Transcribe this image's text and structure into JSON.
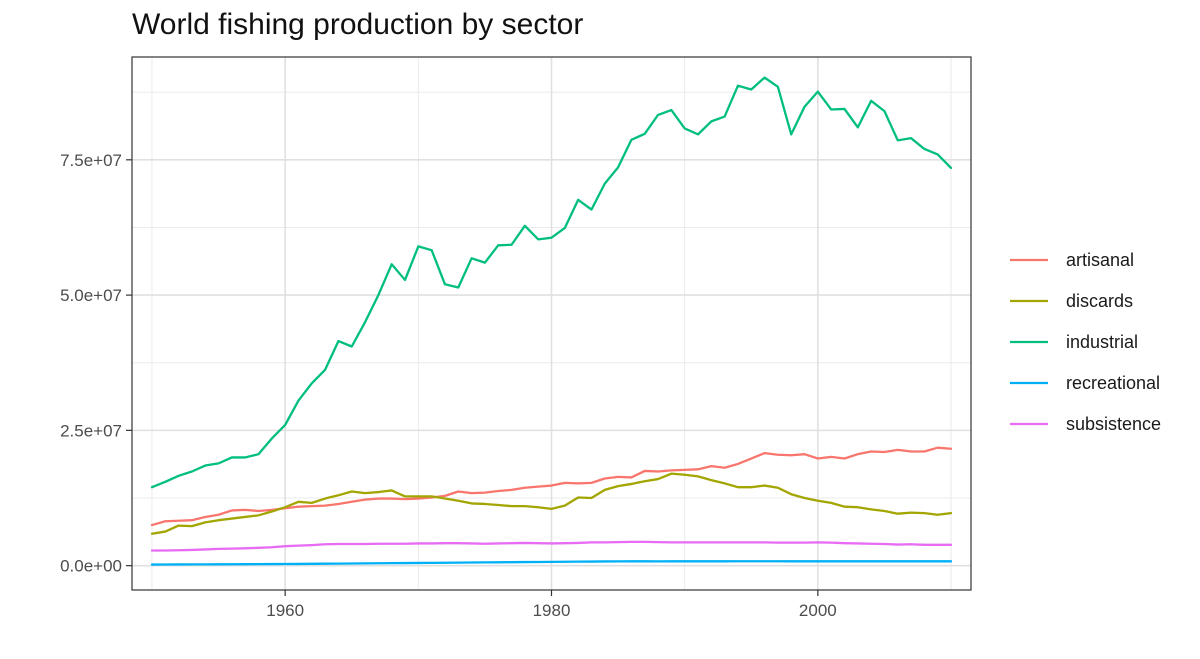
{
  "chart_data": {
    "type": "line",
    "title": "World fishing production by sector",
    "xlabel": "",
    "ylabel": "",
    "xlim": [
      1948.5,
      2011.5
    ],
    "ylim": [
      -4500000,
      94000000
    ],
    "x_ticks": [
      1960,
      1980,
      2000
    ],
    "y_ticks": [
      0,
      25000000,
      50000000,
      75000000
    ],
    "y_tick_labels": [
      "0.0e+00",
      "2.5e+07",
      "5.0e+07",
      "7.5e+07"
    ],
    "grid": true,
    "legend": "right",
    "x": [
      1950,
      1951,
      1952,
      1953,
      1954,
      1955,
      1956,
      1957,
      1958,
      1959,
      1960,
      1961,
      1962,
      1963,
      1964,
      1965,
      1966,
      1967,
      1968,
      1969,
      1970,
      1971,
      1972,
      1973,
      1974,
      1975,
      1976,
      1977,
      1978,
      1979,
      1980,
      1981,
      1982,
      1983,
      1984,
      1985,
      1986,
      1987,
      1988,
      1989,
      1990,
      1991,
      1992,
      1993,
      1994,
      1995,
      1996,
      1997,
      1998,
      1999,
      2000,
      2001,
      2002,
      2003,
      2004,
      2005,
      2006,
      2007,
      2008,
      2009,
      2010
    ],
    "series": [
      {
        "name": "artisanal",
        "color": "#F8766D",
        "values": [
          7500000,
          8200000,
          8300000,
          8400000,
          9000000,
          9400000,
          10200000,
          10300000,
          10100000,
          10300000,
          10600000,
          10900000,
          11000000,
          11100000,
          11400000,
          11800000,
          12200000,
          12400000,
          12400000,
          12300000,
          12400000,
          12600000,
          12900000,
          13700000,
          13400000,
          13500000,
          13800000,
          14000000,
          14400000,
          14600000,
          14800000,
          15300000,
          15200000,
          15300000,
          16100000,
          16400000,
          16300000,
          17500000,
          17400000,
          17600000,
          17700000,
          17800000,
          18400000,
          18100000,
          18800000,
          19800000,
          20800000,
          20500000,
          20400000,
          20600000,
          19800000,
          20100000,
          19800000,
          20600000,
          21100000,
          21000000,
          21400000,
          21100000,
          21100000,
          21800000,
          21600000
        ]
      },
      {
        "name": "discards",
        "color": "#A3A500",
        "values": [
          5900000,
          6300000,
          7400000,
          7300000,
          8000000,
          8400000,
          8700000,
          9000000,
          9300000,
          10000000,
          10800000,
          11800000,
          11600000,
          12400000,
          13000000,
          13700000,
          13400000,
          13600000,
          13900000,
          12800000,
          12800000,
          12800000,
          12400000,
          12000000,
          11500000,
          11400000,
          11200000,
          11000000,
          11000000,
          10800000,
          10500000,
          11100000,
          12600000,
          12500000,
          14000000,
          14700000,
          15100000,
          15600000,
          16000000,
          17000000,
          16800000,
          16500000,
          15800000,
          15200000,
          14500000,
          14500000,
          14800000,
          14400000,
          13200000,
          12500000,
          12000000,
          11600000,
          10900000,
          10800000,
          10400000,
          10100000,
          9600000,
          9800000,
          9700000,
          9400000,
          9700000
        ]
      },
      {
        "name": "industrial",
        "color": "#00BF7D",
        "values": [
          14500000,
          15500000,
          16600000,
          17400000,
          18500000,
          18900000,
          20000000,
          20000000,
          20600000,
          23500000,
          26000000,
          30500000,
          33700000,
          36200000,
          41500000,
          40500000,
          45000000,
          50000000,
          55700000,
          52800000,
          59000000,
          58300000,
          52000000,
          51400000,
          56800000,
          56000000,
          59200000,
          59300000,
          62800000,
          60300000,
          60600000,
          62400000,
          67600000,
          65800000,
          70600000,
          73600000,
          78700000,
          79800000,
          83300000,
          84200000,
          80800000,
          79700000,
          82100000,
          83000000,
          88700000,
          88000000,
          90200000,
          88500000,
          79700000,
          84800000,
          87600000,
          84300000,
          84400000,
          81000000,
          85900000,
          84000000,
          78600000,
          79000000,
          77000000,
          76000000,
          73500000
        ]
      },
      {
        "name": "recreational",
        "color": "#00B0F6",
        "values": [
          200000,
          210000,
          220000,
          230000,
          240000,
          250000,
          260000,
          270000,
          280000,
          290000,
          300000,
          320000,
          340000,
          360000,
          380000,
          400000,
          420000,
          440000,
          460000,
          480000,
          500000,
          520000,
          540000,
          560000,
          580000,
          600000,
          620000,
          640000,
          660000,
          680000,
          700000,
          720000,
          740000,
          760000,
          780000,
          790000,
          800000,
          800000,
          790000,
          800000,
          800000,
          800000,
          800000,
          800000,
          810000,
          810000,
          810000,
          810000,
          800000,
          800000,
          800000,
          800000,
          800000,
          800000,
          800000,
          800000,
          800000,
          800000,
          800000,
          800000,
          800000
        ]
      },
      {
        "name": "subsistence",
        "color": "#E76BF3",
        "values": [
          2800000,
          2800000,
          2850000,
          2900000,
          3000000,
          3100000,
          3150000,
          3200000,
          3300000,
          3400000,
          3600000,
          3700000,
          3800000,
          3950000,
          4000000,
          4000000,
          4000000,
          4050000,
          4050000,
          4050000,
          4100000,
          4100000,
          4150000,
          4150000,
          4100000,
          4050000,
          4100000,
          4150000,
          4200000,
          4150000,
          4100000,
          4150000,
          4200000,
          4300000,
          4300000,
          4350000,
          4400000,
          4400000,
          4350000,
          4300000,
          4300000,
          4300000,
          4300000,
          4300000,
          4300000,
          4300000,
          4300000,
          4250000,
          4250000,
          4250000,
          4300000,
          4250000,
          4150000,
          4100000,
          4050000,
          4000000,
          3900000,
          3950000,
          3850000,
          3850000,
          3850000
        ]
      }
    ]
  }
}
